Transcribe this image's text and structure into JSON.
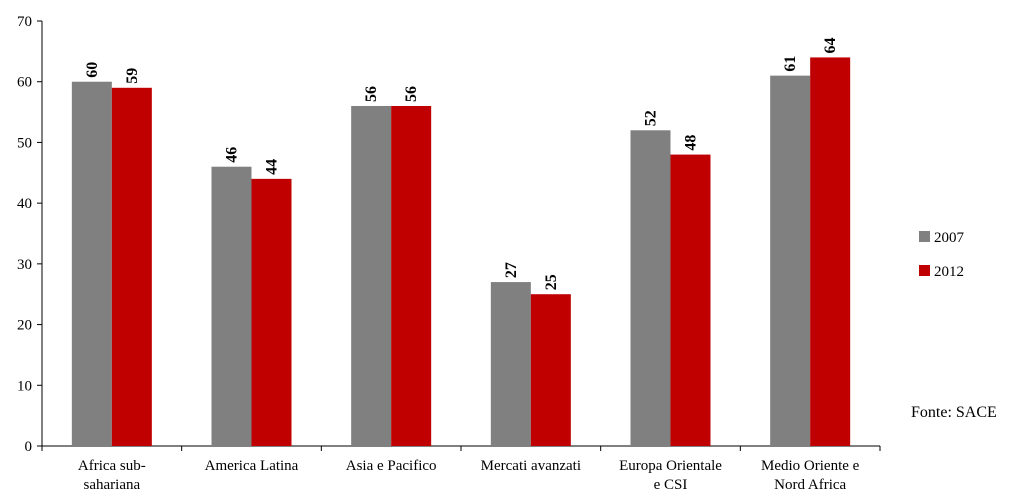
{
  "chart_data": {
    "type": "bar",
    "categories": [
      [
        "Africa sub-",
        "sahariana"
      ],
      [
        "America Latina"
      ],
      [
        "Asia e Pacifico"
      ],
      [
        "Mercati avanzati"
      ],
      [
        "Europa Orientale",
        "e CSI"
      ],
      [
        "Medio Oriente e",
        "Nord Africa"
      ]
    ],
    "series": [
      {
        "name": "2007",
        "color": "#808080",
        "values": [
          60,
          46,
          56,
          27,
          52,
          61
        ]
      },
      {
        "name": "2012",
        "color": "#C00000",
        "values": [
          59,
          44,
          56,
          25,
          48,
          64
        ]
      }
    ],
    "ylim": [
      0,
      70
    ],
    "yticks": [
      0,
      10,
      20,
      30,
      40,
      50,
      60,
      70
    ],
    "grid": false,
    "legend_position": "right"
  },
  "source_note": "Fonte: SACE"
}
